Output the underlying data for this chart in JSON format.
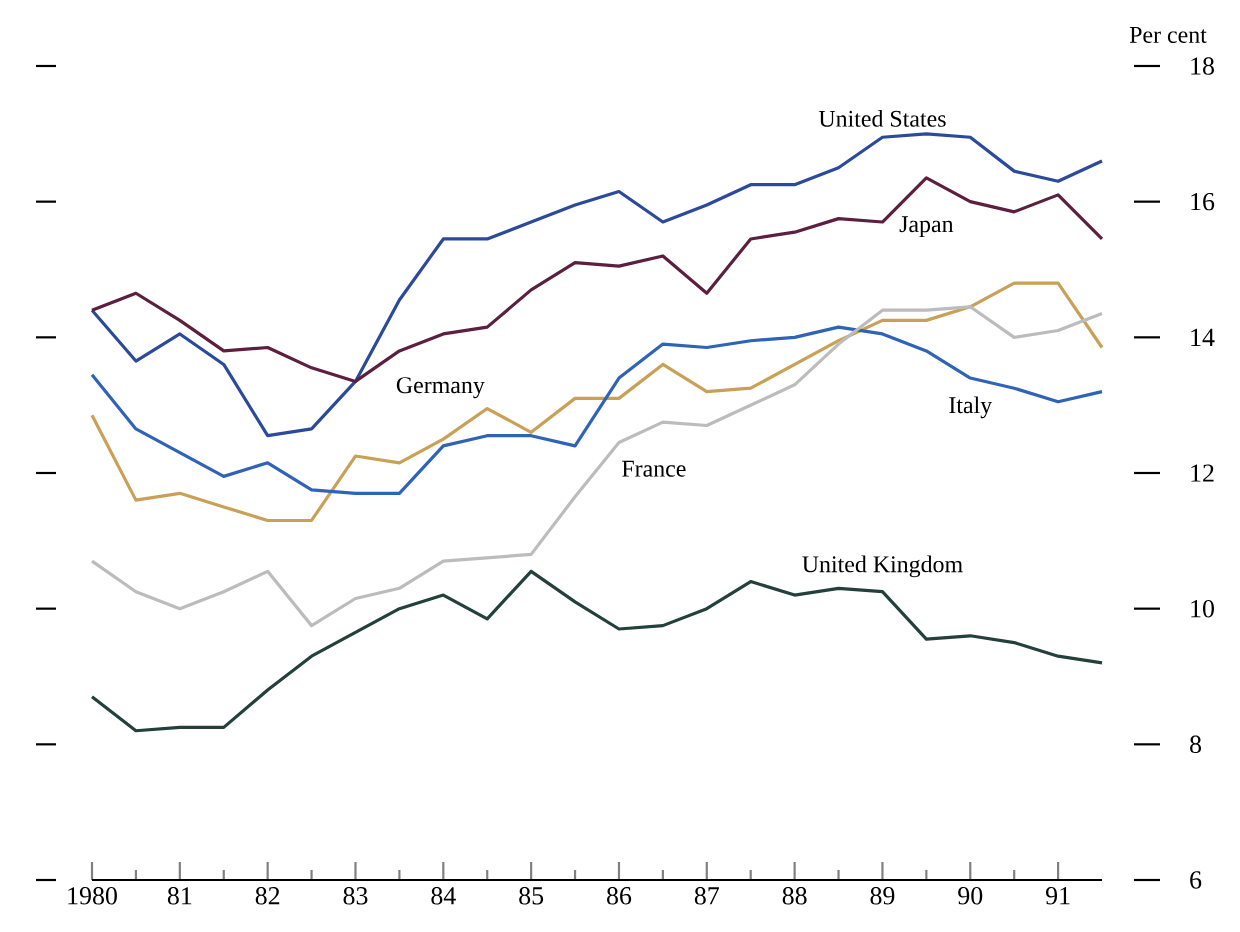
{
  "chart_data": {
    "type": "line",
    "ylabel": "Per cent",
    "x": [
      1980,
      1980.5,
      1981,
      1981.5,
      1982,
      1982.5,
      1983,
      1983.5,
      1984,
      1984.5,
      1985,
      1985.5,
      1986,
      1986.5,
      1987,
      1987.5,
      1988,
      1988.5,
      1989,
      1989.5,
      1990,
      1990.5,
      1991,
      1991.5
    ],
    "xlim": [
      1980,
      1991.5
    ],
    "xticks": [
      {
        "value": 1980,
        "label": "1980"
      },
      {
        "value": 1981,
        "label": "81"
      },
      {
        "value": 1982,
        "label": "82"
      },
      {
        "value": 1983,
        "label": "83"
      },
      {
        "value": 1984,
        "label": "84"
      },
      {
        "value": 1985,
        "label": "85"
      },
      {
        "value": 1986,
        "label": "86"
      },
      {
        "value": 1987,
        "label": "87"
      },
      {
        "value": 1988,
        "label": "88"
      },
      {
        "value": 1989,
        "label": "89"
      },
      {
        "value": 1990,
        "label": "90"
      },
      {
        "value": 1991,
        "label": "91"
      }
    ],
    "ylim": [
      6,
      18
    ],
    "yticks": [
      6,
      8,
      10,
      12,
      14,
      16,
      18
    ],
    "series": [
      {
        "name": "United States",
        "color": "#2b4a9c",
        "values": [
          14.4,
          13.65,
          14.05,
          13.6,
          12.55,
          12.65,
          13.35,
          14.55,
          15.45,
          15.45,
          15.7,
          15.95,
          16.15,
          15.7,
          15.95,
          16.25,
          16.25,
          16.5,
          16.95,
          17.0,
          16.95,
          16.45,
          16.3,
          16.6
        ]
      },
      {
        "name": "Japan",
        "color": "#5c1f3f",
        "values": [
          14.4,
          14.65,
          14.25,
          13.8,
          13.85,
          13.55,
          13.35,
          13.8,
          14.05,
          14.15,
          14.7,
          15.1,
          15.05,
          15.2,
          14.65,
          15.45,
          15.55,
          15.75,
          15.7,
          16.35,
          16.0,
          15.85,
          16.1,
          15.45
        ]
      },
      {
        "name": "Germany",
        "color": "#c9a055",
        "values": [
          12.85,
          11.6,
          11.7,
          11.5,
          11.3,
          11.3,
          12.25,
          12.15,
          12.5,
          12.95,
          12.6,
          13.1,
          13.1,
          13.6,
          13.2,
          13.25,
          13.6,
          13.95,
          14.25,
          14.25,
          14.45,
          14.8,
          14.8,
          13.85
        ]
      },
      {
        "name": "Italy",
        "color": "#2f63b8",
        "values": [
          13.45,
          12.65,
          12.3,
          11.95,
          12.15,
          11.75,
          11.7,
          11.7,
          12.4,
          12.55,
          12.55,
          12.4,
          13.4,
          13.9,
          13.85,
          13.95,
          14.0,
          14.15,
          14.05,
          13.8,
          13.4,
          13.25,
          13.05,
          13.2
        ]
      },
      {
        "name": "France",
        "color": "#bcbcbc",
        "values": [
          10.7,
          10.25,
          10.0,
          10.25,
          10.55,
          9.75,
          10.15,
          10.3,
          10.7,
          10.75,
          10.8,
          11.65,
          12.45,
          12.75,
          12.7,
          13.0,
          13.3,
          13.9,
          14.4,
          14.4,
          14.45,
          14.0,
          14.1,
          14.35
        ]
      },
      {
        "name": "United Kingdom",
        "color": "#24403a",
        "values": [
          8.7,
          8.2,
          8.25,
          8.25,
          8.8,
          9.3,
          9.65,
          10.0,
          10.2,
          9.85,
          10.55,
          10.1,
          9.7,
          9.75,
          10.0,
          10.4,
          10.2,
          10.3,
          10.25,
          9.55,
          9.6,
          9.5,
          9.3,
          9.2
        ]
      }
    ],
    "grid": false,
    "legend": false,
    "marker": "none",
    "line_style": "solid"
  }
}
